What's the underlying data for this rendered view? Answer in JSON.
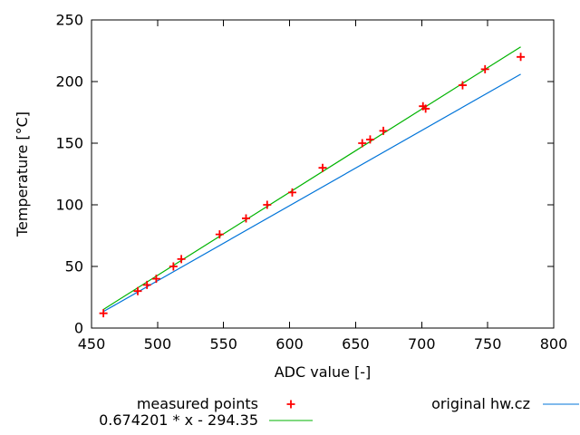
{
  "chart_data": {
    "type": "scatter",
    "title": "",
    "xlabel": "ADC value [-]",
    "ylabel": "Temperature [°C]",
    "xlim": [
      450,
      800
    ],
    "ylim": [
      0,
      250
    ],
    "x_ticks": [
      450,
      500,
      550,
      600,
      650,
      700,
      750,
      800
    ],
    "y_ticks": [
      0,
      50,
      100,
      150,
      200,
      250
    ],
    "grid": false,
    "legend_position": "below-two-columns",
    "series": [
      {
        "name": "measured points",
        "type": "scatter",
        "marker": "plus",
        "color": "#ff0000",
        "points": [
          [
            459,
            12
          ],
          [
            485,
            30
          ],
          [
            492,
            35
          ],
          [
            499,
            40
          ],
          [
            512,
            50
          ],
          [
            518,
            56
          ],
          [
            547,
            76
          ],
          [
            567,
            89
          ],
          [
            583,
            100
          ],
          [
            602,
            110
          ],
          [
            625,
            130
          ],
          [
            655,
            150
          ],
          [
            661,
            153
          ],
          [
            671,
            160
          ],
          [
            701,
            180
          ],
          [
            703,
            178
          ],
          [
            731,
            197
          ],
          [
            748,
            210
          ],
          [
            775,
            220
          ]
        ]
      },
      {
        "name": "0.674201 * x - 294.35",
        "type": "line",
        "color": "#00b300",
        "equation": {
          "slope": 0.674201,
          "intercept": -294.35
        },
        "x": [
          459,
          775
        ],
        "y": [
          15.11,
          228.16
        ]
      },
      {
        "name": "original hw.cz",
        "type": "line",
        "color": "#0074d9",
        "x": [
          459,
          775
        ],
        "y": [
          13.4,
          206.0
        ]
      }
    ]
  }
}
